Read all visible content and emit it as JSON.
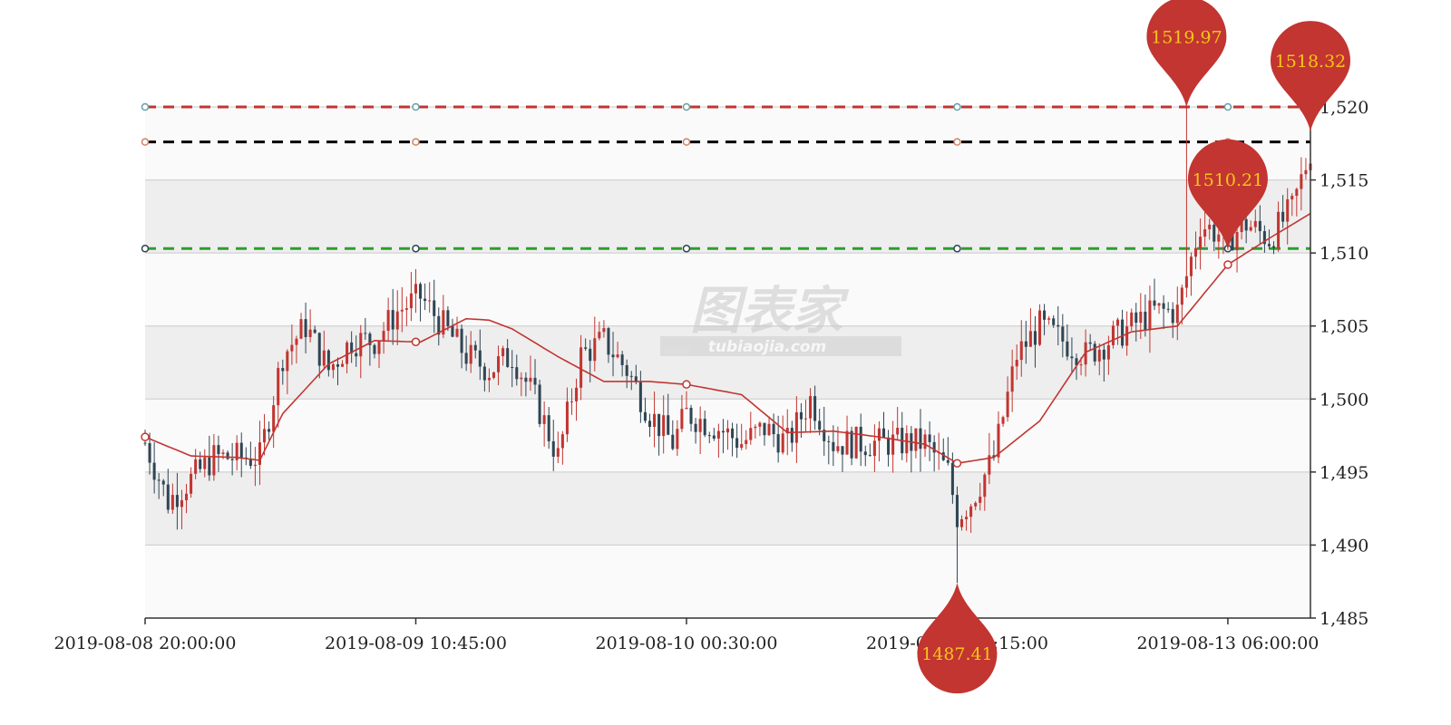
{
  "chart_data": {
    "type": "candlestick",
    "title": "",
    "ylim": [
      1485,
      1520
    ],
    "y_ticks": [
      "1,485",
      "1,490",
      "1,495",
      "1,500",
      "1,505",
      "1,510",
      "1,515",
      "1,520"
    ],
    "y_tick_values": [
      1485,
      1490,
      1495,
      1500,
      1505,
      1510,
      1515,
      1520
    ],
    "x_tick_labels": [
      "2019-08-08 20:00:00",
      "2019-08-09 10:45:00",
      "2019-08-10 00:30:00",
      "2019-08-12 15:15:00",
      "2019-08-13 06:00:00"
    ],
    "x_tick_indices": [
      0,
      59,
      118,
      177,
      236
    ],
    "candle_count": 255,
    "colors": {
      "up": "#c23531",
      "down": "#2f4554",
      "ma": "#c23531",
      "pin": "#c23531",
      "pin_text": "#f5c518"
    },
    "moving_average": {
      "at": [
        0,
        10,
        20,
        25,
        30,
        40,
        50,
        60,
        70,
        75,
        80,
        90,
        100,
        110,
        118,
        130,
        140,
        150,
        160,
        170,
        177,
        185,
        195,
        205,
        215,
        225,
        236,
        245,
        254
      ],
      "values": [
        1497.4,
        1496.1,
        1496.0,
        1495.8,
        1499.0,
        1502.4,
        1504.0,
        1503.9,
        1505.5,
        1505.4,
        1504.8,
        1502.9,
        1501.2,
        1501.2,
        1501.0,
        1500.3,
        1497.7,
        1497.8,
        1497.4,
        1496.9,
        1495.6,
        1496.0,
        1498.5,
        1503.2,
        1504.6,
        1505.0,
        1509.2,
        1511.0,
        1512.7
      ]
    },
    "price_path": {
      "at": [
        0,
        5,
        15,
        25,
        30,
        35,
        40,
        45,
        50,
        55,
        60,
        65,
        70,
        75,
        80,
        85,
        90,
        95,
        100,
        105,
        110,
        115,
        118,
        125,
        130,
        135,
        140,
        145,
        150,
        155,
        160,
        165,
        170,
        175,
        177,
        180,
        185,
        190,
        195,
        200,
        205,
        210,
        215,
        220,
        225,
        230,
        236,
        240,
        245,
        250,
        254
      ],
      "values": [
        1497.0,
        1493.0,
        1496.0,
        1496.0,
        1503.0,
        1505.0,
        1502.0,
        1504.0,
        1504.0,
        1506.0,
        1507.0,
        1505.0,
        1503.0,
        1502.0,
        1503.0,
        1500.0,
        1496.0,
        1503.0,
        1504.0,
        1502.0,
        1499.0,
        1497.0,
        1499.0,
        1498.0,
        1497.0,
        1498.0,
        1497.0,
        1500.0,
        1497.0,
        1497.0,
        1497.0,
        1497.0,
        1497.0,
        1495.0,
        1492.0,
        1493.0,
        1496.0,
        1503.0,
        1505.0,
        1504.0,
        1503.0,
        1504.0,
        1505.0,
        1506.0,
        1506.0,
        1512.0,
        1511.0,
        1512.0,
        1511.0,
        1513.0,
        1517.0
      ]
    },
    "mark_lines": [
      {
        "name": "max",
        "value": 1520.0,
        "color": "#c23531",
        "end_color": "#61a0a8"
      },
      {
        "name": "average-high",
        "value": 1517.6,
        "color": "#000000",
        "end_color": "#d48265"
      },
      {
        "name": "average",
        "value": 1510.3,
        "color": "#2e9e2e",
        "end_color": "#2f4554"
      }
    ],
    "mark_line_dots_at": [
      0,
      59,
      118,
      177,
      236
    ],
    "mark_points": [
      {
        "label": "1519.97",
        "index": 227,
        "value": 1519.97
      },
      {
        "label": "1518.32",
        "index": 254,
        "value": 1518.32
      },
      {
        "label": "1510.21",
        "index": 236,
        "value": 1510.21
      },
      {
        "label": "1487.41",
        "index": 177,
        "value": 1487.41
      }
    ],
    "split_area": true,
    "watermark": {
      "main": "图表家",
      "sub": "tubiaojia.com"
    }
  }
}
